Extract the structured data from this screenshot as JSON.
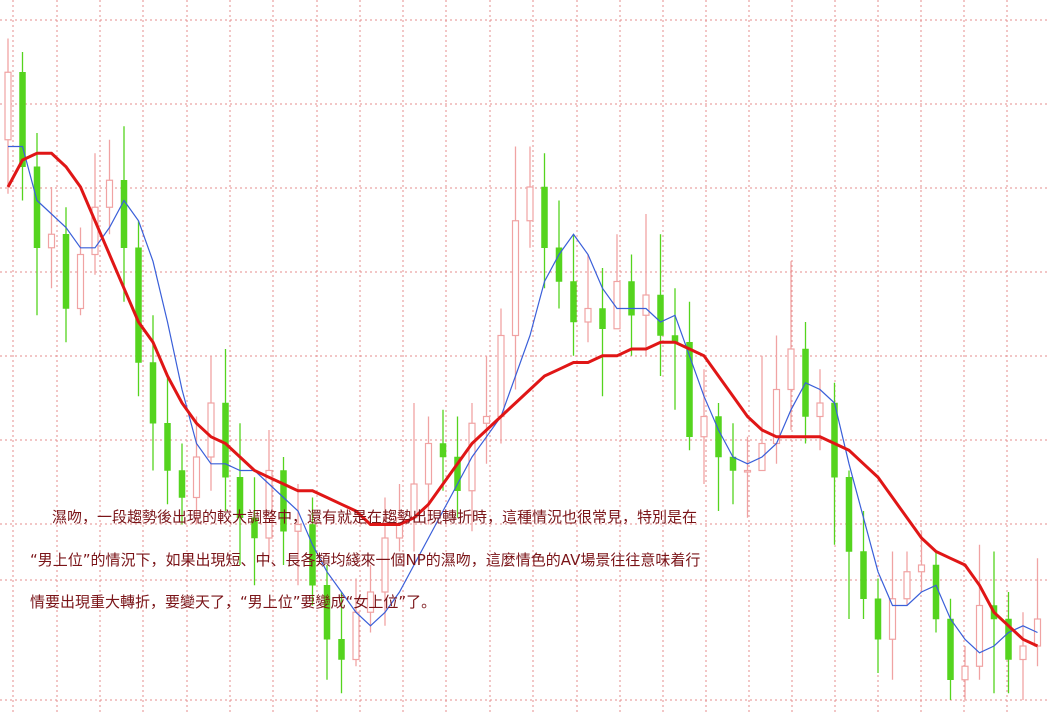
{
  "chart_data": {
    "type": "candlestick",
    "title": "",
    "xlabel": "",
    "ylabel": "",
    "ylim": [
      0,
      100
    ],
    "grid": true,
    "up_color": "#f0a3a3",
    "down_color": "#55d41e",
    "short_ma_color": "#3a5fd9",
    "long_ma_color": "#e01616",
    "grid_color": "#e48d8d",
    "candles": [
      [
        83,
        93,
        98,
        75
      ],
      [
        93,
        79,
        96,
        74
      ],
      [
        79,
        67,
        84,
        57
      ],
      [
        67,
        69,
        76,
        61
      ],
      [
        69,
        58,
        73,
        53
      ],
      [
        58,
        66,
        70,
        57
      ],
      [
        66,
        73,
        81,
        63
      ],
      [
        73,
        77,
        83,
        69
      ],
      [
        77,
        67,
        85,
        59
      ],
      [
        67,
        50,
        71,
        45
      ],
      [
        50,
        41,
        57,
        34
      ],
      [
        41,
        34,
        48,
        29
      ],
      [
        34,
        30,
        38,
        26
      ],
      [
        30,
        36,
        42,
        26
      ],
      [
        36,
        44,
        51,
        31
      ],
      [
        44,
        33,
        52,
        28
      ],
      [
        33,
        27,
        41,
        20
      ],
      [
        27,
        24,
        33,
        17
      ],
      [
        24,
        34,
        40,
        21
      ],
      [
        34,
        25,
        36,
        20
      ],
      [
        25,
        26,
        32,
        17
      ],
      [
        26,
        17,
        30,
        14
      ],
      [
        17,
        9,
        20,
        3
      ],
      [
        9,
        6,
        16,
        1
      ],
      [
        6,
        13,
        18,
        5
      ],
      [
        13,
        16,
        20,
        10
      ],
      [
        16,
        24,
        30,
        11
      ],
      [
        24,
        27,
        32,
        22
      ],
      [
        27,
        32,
        44,
        22
      ],
      [
        32,
        38,
        42,
        26
      ],
      [
        38,
        36,
        43,
        31
      ],
      [
        36,
        31,
        42,
        27
      ],
      [
        31,
        41,
        44,
        25
      ],
      [
        41,
        42,
        51,
        35
      ],
      [
        42,
        54,
        58,
        38
      ],
      [
        54,
        71,
        82,
        46
      ],
      [
        71,
        76,
        82,
        67
      ],
      [
        76,
        67,
        81,
        61
      ],
      [
        67,
        62,
        74,
        58
      ],
      [
        62,
        56,
        69,
        51
      ],
      [
        56,
        58,
        66,
        53
      ],
      [
        58,
        55,
        64,
        45
      ],
      [
        55,
        62,
        69,
        55
      ],
      [
        62,
        57,
        66,
        51
      ],
      [
        57,
        60,
        72,
        51
      ],
      [
        60,
        54,
        69,
        48
      ],
      [
        54,
        53,
        61,
        43
      ],
      [
        53,
        39,
        59,
        37
      ],
      [
        39,
        42,
        49,
        32
      ],
      [
        42,
        36,
        44,
        28
      ],
      [
        36,
        34,
        41,
        29
      ],
      [
        34,
        34,
        39,
        27
      ],
      [
        34,
        38,
        51,
        34
      ],
      [
        38,
        46,
        54,
        35
      ],
      [
        46,
        52,
        65,
        40
      ],
      [
        52,
        42,
        56,
        38
      ],
      [
        42,
        44,
        49,
        37
      ],
      [
        44,
        33,
        47,
        23
      ],
      [
        33,
        22,
        34,
        12
      ],
      [
        22,
        15,
        28,
        12
      ],
      [
        15,
        9,
        18,
        4
      ],
      [
        9,
        15,
        22,
        3
      ],
      [
        15,
        19,
        22,
        14
      ],
      [
        19,
        20,
        25,
        16
      ],
      [
        20,
        12,
        22,
        10
      ],
      [
        12,
        3,
        15,
        0
      ],
      [
        3,
        5,
        8,
        0
      ],
      [
        5,
        14,
        23,
        3
      ],
      [
        14,
        12,
        22,
        1
      ],
      [
        12,
        6,
        16,
        1
      ],
      [
        6,
        8,
        13,
        0
      ],
      [
        8,
        12,
        21,
        5
      ]
    ],
    "short_ma": [
      82,
      82,
      74,
      72,
      70,
      67,
      67,
      70,
      74,
      71,
      65,
      56,
      46,
      38,
      35,
      35,
      34,
      34,
      32,
      30,
      28,
      23,
      19,
      16,
      13,
      11,
      13,
      16,
      20,
      24,
      28,
      32,
      36,
      39,
      42,
      48,
      54,
      62,
      66,
      69,
      66,
      61,
      58,
      58,
      58,
      56,
      57,
      51,
      45,
      40,
      36,
      35,
      36,
      38,
      43,
      47,
      46,
      44,
      35,
      27,
      19,
      14,
      14,
      16,
      17,
      12,
      9,
      7,
      8,
      10,
      11,
      10
    ],
    "long_ma": [
      76,
      80,
      81,
      81,
      79,
      76,
      71,
      66,
      61,
      56,
      53,
      48,
      44,
      41,
      39,
      38,
      36,
      34,
      33,
      32,
      31,
      31,
      30,
      29,
      28,
      26,
      26,
      26,
      27,
      29,
      32,
      35,
      38,
      40,
      42,
      44,
      46,
      48,
      49,
      50,
      50,
      51,
      51,
      52,
      52,
      53,
      53,
      52,
      51,
      48,
      45,
      42,
      40,
      39,
      39,
      39,
      39,
      38,
      37,
      35,
      33,
      30,
      27,
      24,
      22,
      21,
      20,
      17,
      13,
      11,
      9,
      8
    ]
  },
  "annotation": {
    "line1": "濕吻，一段趨勢後出現的較大調整中，還有就是在趨勢出現轉折時，這種情況也很常見，特別是在",
    "line2": "“男上位”的情況下，如果出現短、中、長各類均綫來一個NP的濕吻，這麼情色的AV場景往往意味着行",
    "line3": "情要出現重大轉折，要變天了，“男上位”要變成“女上位”了。"
  }
}
